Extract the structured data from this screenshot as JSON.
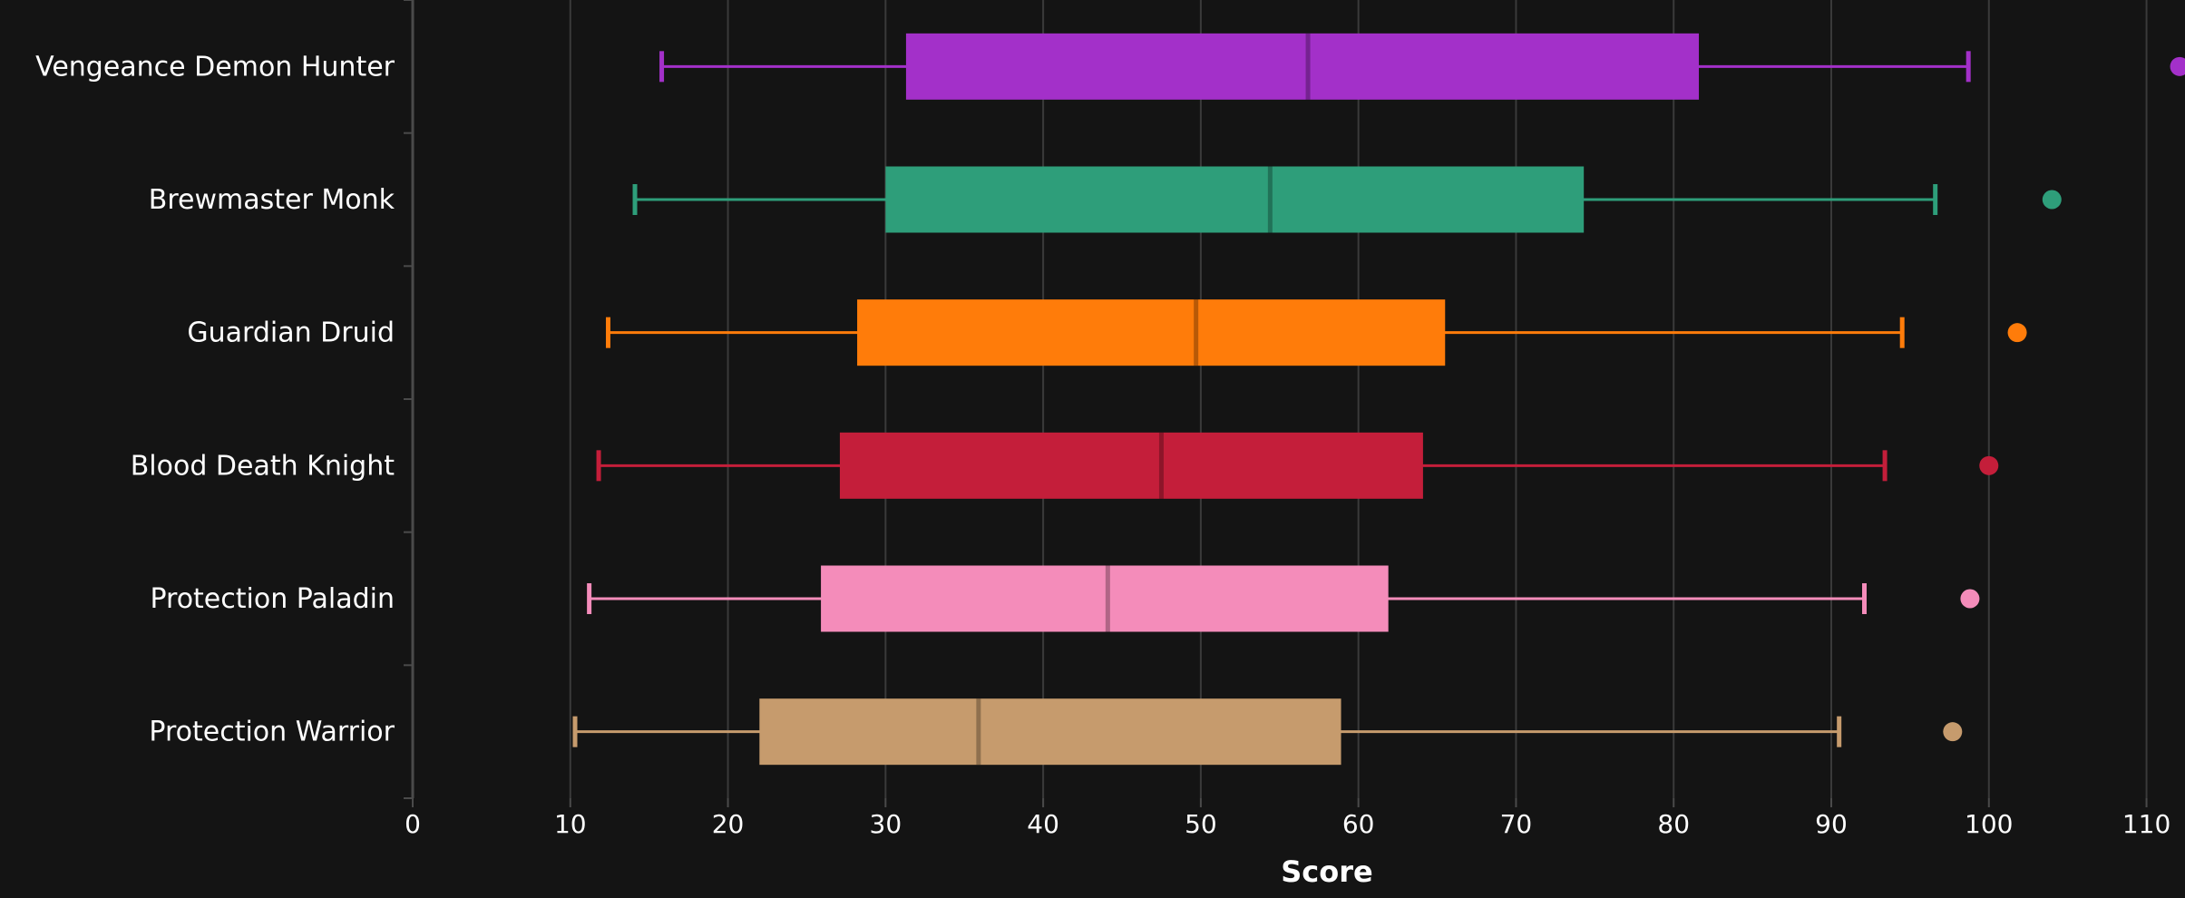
{
  "chart_data": {
    "type": "boxplot",
    "orientation": "horizontal",
    "xlabel": "Score",
    "xlim": [
      0,
      112.5
    ],
    "xticks": [
      0,
      10,
      20,
      30,
      40,
      50,
      60,
      70,
      80,
      90,
      100,
      110
    ],
    "grid": "vertical",
    "background": "#141414",
    "series": [
      {
        "name": "Vengeance Demon Hunter",
        "color": "#a330c9",
        "whisker_low": 15.8,
        "q1": 31.3,
        "median": 56.8,
        "q3": 81.6,
        "whisker_high": 98.7,
        "outliers": [
          112.1
        ]
      },
      {
        "name": "Brewmaster Monk",
        "color": "#2e9e7a",
        "whisker_low": 14.1,
        "q1": 30.0,
        "median": 54.4,
        "q3": 74.3,
        "whisker_high": 96.6,
        "outliers": [
          104.0
        ]
      },
      {
        "name": "Guardian Druid",
        "color": "#ff7c0a",
        "whisker_low": 12.4,
        "q1": 28.2,
        "median": 49.7,
        "q3": 65.5,
        "whisker_high": 94.5,
        "outliers": [
          101.8
        ]
      },
      {
        "name": "Blood Death Knight",
        "color": "#c41e3a",
        "whisker_low": 11.8,
        "q1": 27.1,
        "median": 47.5,
        "q3": 64.1,
        "whisker_high": 93.4,
        "outliers": [
          100.0
        ]
      },
      {
        "name": "Protection Paladin",
        "color": "#f48cba",
        "whisker_low": 11.2,
        "q1": 25.9,
        "median": 44.1,
        "q3": 61.9,
        "whisker_high": 92.1,
        "outliers": [
          98.8
        ]
      },
      {
        "name": "Protection Warrior",
        "color": "#c69b6d",
        "whisker_low": 10.3,
        "q1": 22.0,
        "median": 35.9,
        "q3": 58.9,
        "whisker_high": 90.5,
        "outliers": [
          97.7
        ]
      }
    ]
  }
}
